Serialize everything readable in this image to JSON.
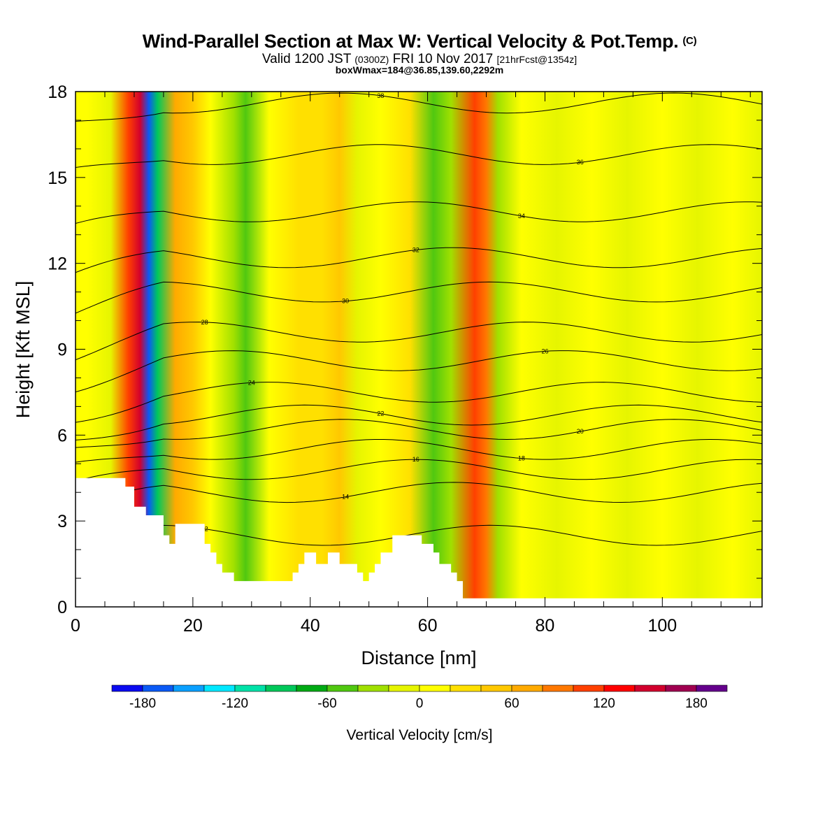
{
  "title": {
    "main": "Wind-Parallel Section at Max W: Vertical Velocity & Pot.Temp.",
    "copyright": "(C)",
    "valid_prefix": "Valid 1200 JST",
    "valid_utc": "(0300Z)",
    "valid_date": "FRI 10 Nov 2017",
    "forecast": "[21hrFcst@1354z]",
    "box_info": "boxWmax=184@36.85,139.60,2292m"
  },
  "chart_data": {
    "type": "heatmap",
    "xlabel": "Distance [nm]",
    "ylabel": "Height [Kft MSL]",
    "xlim": [
      0,
      117
    ],
    "ylim": [
      0,
      18
    ],
    "x_ticks": [
      0,
      20,
      40,
      60,
      80,
      100
    ],
    "y_ticks": [
      0,
      3,
      6,
      9,
      12,
      15,
      18
    ],
    "colorbar": {
      "title": "Vertical Velocity [cm/s]",
      "tick_values": [
        -180,
        -120,
        -60,
        0,
        60,
        120,
        180
      ],
      "tick_labels": [
        "-180",
        "-120",
        "-60",
        "0",
        "60",
        "120",
        "180"
      ],
      "levels": [
        -200,
        -180,
        -160,
        -140,
        -120,
        -100,
        -80,
        -60,
        -40,
        -20,
        0,
        20,
        40,
        60,
        80,
        100,
        120,
        140,
        160,
        180,
        200
      ],
      "colors": [
        "#0a0af0",
        "#0a5af5",
        "#0aa0ff",
        "#00e8ff",
        "#00e2a8",
        "#00c85a",
        "#00aa14",
        "#50c810",
        "#a0e000",
        "#e6f500",
        "#ffff00",
        "#ffe000",
        "#ffc800",
        "#ffaa00",
        "#ff7800",
        "#ff4000",
        "#ff0000",
        "#d2002d",
        "#a00050",
        "#64008c"
      ]
    },
    "velocity_columns": [
      {
        "x": 0,
        "value": 0
      },
      {
        "x": 2,
        "value": 10
      },
      {
        "x": 6,
        "value": -20
      },
      {
        "x": 9,
        "value": 110
      },
      {
        "x": 11,
        "value": 140
      },
      {
        "x": 12.5,
        "value": -170
      },
      {
        "x": 14,
        "value": -90
      },
      {
        "x": 17,
        "value": 60
      },
      {
        "x": 20,
        "value": 40
      },
      {
        "x": 23,
        "value": 15
      },
      {
        "x": 27,
        "value": -40
      },
      {
        "x": 29,
        "value": -60
      },
      {
        "x": 33,
        "value": 10
      },
      {
        "x": 38,
        "value": 30
      },
      {
        "x": 42,
        "value": 20
      },
      {
        "x": 45,
        "value": 40
      },
      {
        "x": 48,
        "value": -20
      },
      {
        "x": 52,
        "value": 10
      },
      {
        "x": 57,
        "value": 30
      },
      {
        "x": 61,
        "value": -50
      },
      {
        "x": 64,
        "value": -40
      },
      {
        "x": 68,
        "value": 100
      },
      {
        "x": 70,
        "value": 80
      },
      {
        "x": 72,
        "value": -40
      },
      {
        "x": 76,
        "value": 10
      },
      {
        "x": 82,
        "value": -10
      },
      {
        "x": 88,
        "value": 10
      },
      {
        "x": 94,
        "value": -10
      },
      {
        "x": 100,
        "value": 0
      },
      {
        "x": 106,
        "value": -10
      },
      {
        "x": 112,
        "value": 10
      },
      {
        "x": 117,
        "value": -10
      }
    ],
    "theta_contours": [
      {
        "label": "12",
        "y_kft": 2.5
      },
      {
        "label": "14",
        "y_kft": 4.0
      },
      {
        "label": "16",
        "y_kft": 4.8
      },
      {
        "label": "18",
        "y_kft": 5.5
      },
      {
        "label": "20",
        "y_kft": 6.2
      },
      {
        "label": "22",
        "y_kft": 6.7
      },
      {
        "label": "24",
        "y_kft": 7.5
      },
      {
        "label": "26",
        "y_kft": 8.6
      },
      {
        "label": "28",
        "y_kft": 9.6
      },
      {
        "label": "30",
        "y_kft": 11.0
      },
      {
        "label": "32",
        "y_kft": 12.2
      },
      {
        "label": "34",
        "y_kft": 13.8
      },
      {
        "label": "36",
        "y_kft": 15.8
      },
      {
        "label": "38",
        "y_kft": 17.6
      }
    ],
    "terrain_kft": [
      {
        "x": 0,
        "y": 4.5
      },
      {
        "x": 8.5,
        "y": 4.5
      },
      {
        "x": 8.5,
        "y": 4.2
      },
      {
        "x": 10,
        "y": 4.2
      },
      {
        "x": 10,
        "y": 3.5
      },
      {
        "x": 12,
        "y": 3.5
      },
      {
        "x": 12,
        "y": 3.2
      },
      {
        "x": 15,
        "y": 3.2
      },
      {
        "x": 15,
        "y": 2.5
      },
      {
        "x": 16,
        "y": 2.5
      },
      {
        "x": 16,
        "y": 2.2
      },
      {
        "x": 17,
        "y": 2.2
      },
      {
        "x": 17,
        "y": 2.9
      },
      {
        "x": 22,
        "y": 2.9
      },
      {
        "x": 22,
        "y": 2.2
      },
      {
        "x": 23,
        "y": 2.2
      },
      {
        "x": 23,
        "y": 1.9
      },
      {
        "x": 24,
        "y": 1.9
      },
      {
        "x": 24,
        "y": 1.5
      },
      {
        "x": 25,
        "y": 1.5
      },
      {
        "x": 25,
        "y": 1.2
      },
      {
        "x": 27,
        "y": 1.2
      },
      {
        "x": 27,
        "y": 0.9
      },
      {
        "x": 37,
        "y": 0.9
      },
      {
        "x": 37,
        "y": 1.2
      },
      {
        "x": 38,
        "y": 1.2
      },
      {
        "x": 38,
        "y": 1.5
      },
      {
        "x": 39,
        "y": 1.5
      },
      {
        "x": 39,
        "y": 1.9
      },
      {
        "x": 41,
        "y": 1.9
      },
      {
        "x": 41,
        "y": 1.5
      },
      {
        "x": 43,
        "y": 1.5
      },
      {
        "x": 43,
        "y": 1.9
      },
      {
        "x": 45,
        "y": 1.9
      },
      {
        "x": 45,
        "y": 1.5
      },
      {
        "x": 48,
        "y": 1.5
      },
      {
        "x": 48,
        "y": 1.2
      },
      {
        "x": 49,
        "y": 1.2
      },
      {
        "x": 49,
        "y": 0.9
      },
      {
        "x": 50,
        "y": 0.9
      },
      {
        "x": 50,
        "y": 1.2
      },
      {
        "x": 51,
        "y": 1.2
      },
      {
        "x": 51,
        "y": 1.5
      },
      {
        "x": 52,
        "y": 1.5
      },
      {
        "x": 52,
        "y": 1.9
      },
      {
        "x": 54,
        "y": 1.9
      },
      {
        "x": 54,
        "y": 2.5
      },
      {
        "x": 59,
        "y": 2.5
      },
      {
        "x": 59,
        "y": 2.2
      },
      {
        "x": 61,
        "y": 2.2
      },
      {
        "x": 61,
        "y": 1.9
      },
      {
        "x": 62,
        "y": 1.9
      },
      {
        "x": 62,
        "y": 1.5
      },
      {
        "x": 64,
        "y": 1.5
      },
      {
        "x": 64,
        "y": 1.2
      },
      {
        "x": 65,
        "y": 1.2
      },
      {
        "x": 65,
        "y": 0.9
      },
      {
        "x": 66,
        "y": 0.9
      },
      {
        "x": 66,
        "y": 0.3
      },
      {
        "x": 117,
        "y": 0.3
      }
    ]
  }
}
